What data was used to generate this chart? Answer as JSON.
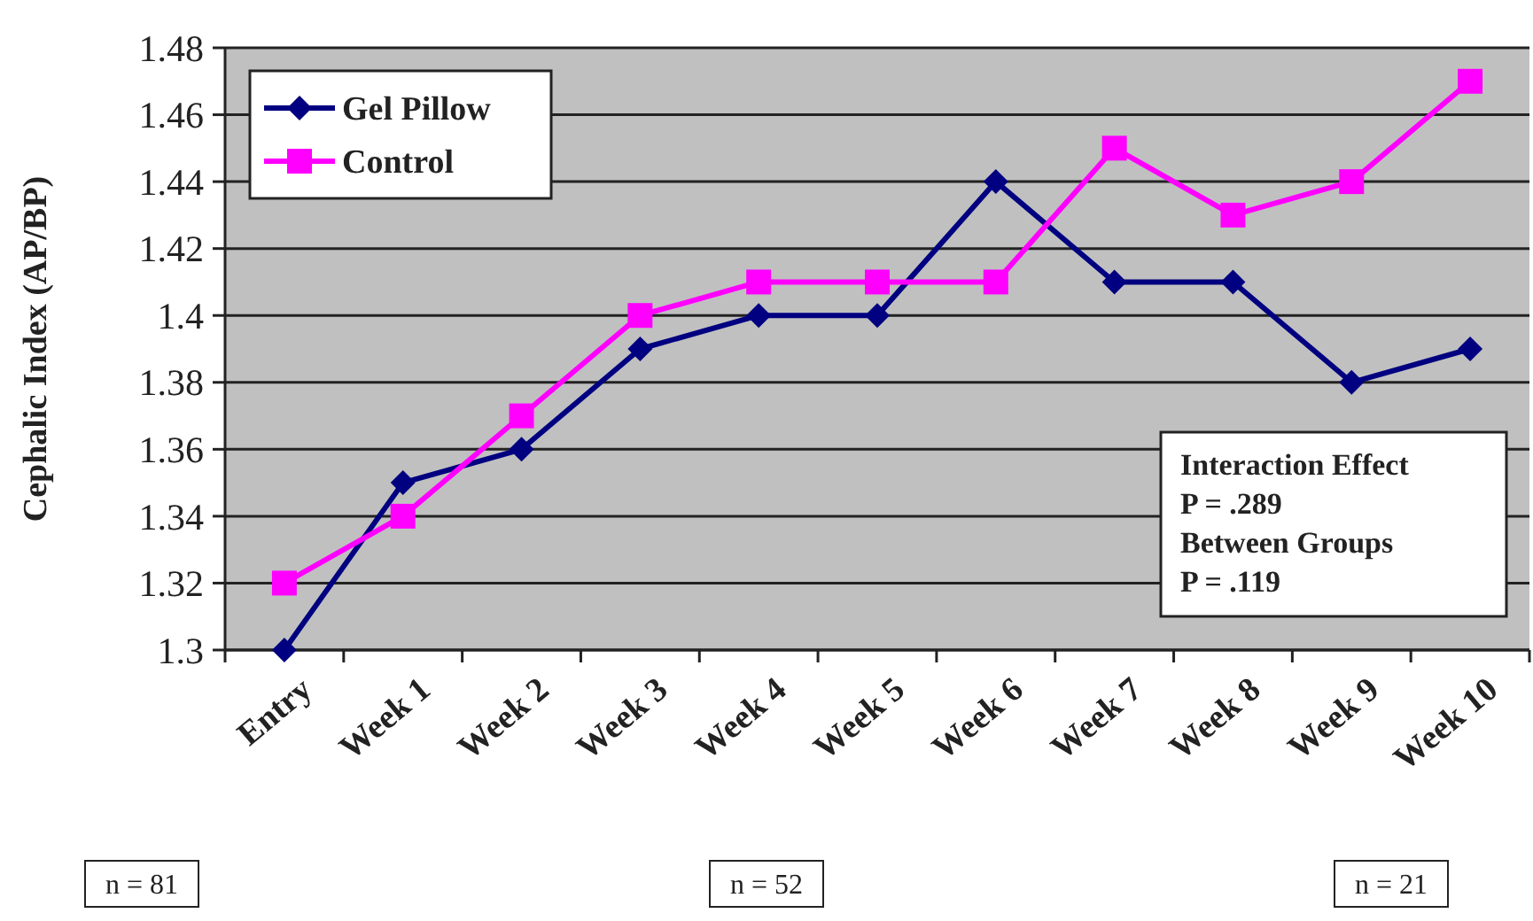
{
  "chart_data": {
    "type": "line",
    "ylabel": "Cephalic Index (AP/BP)",
    "categories": [
      "Entry",
      "Week 1",
      "Week 2",
      "Week 3",
      "Week 4",
      "Week 5",
      "Week 6",
      "Week 7",
      "Week 8",
      "Week 9",
      "Week 10"
    ],
    "series": [
      {
        "name": "Gel Pillow",
        "color": "#000080",
        "marker": "diamond",
        "values": [
          1.3,
          1.35,
          1.36,
          1.39,
          1.4,
          1.4,
          1.44,
          1.41,
          1.41,
          1.38,
          1.39
        ]
      },
      {
        "name": "Control",
        "color": "#ff00ff",
        "marker": "square",
        "values": [
          1.32,
          1.34,
          1.37,
          1.4,
          1.41,
          1.41,
          1.41,
          1.45,
          1.43,
          1.44,
          1.47
        ]
      }
    ],
    "ylim": [
      1.3,
      1.48
    ],
    "yticks": [
      1.3,
      1.32,
      1.34,
      1.36,
      1.38,
      1.4,
      1.42,
      1.44,
      1.46,
      1.48
    ],
    "grid": "y",
    "legend": "top left",
    "annotations": [
      "Interaction Effect\nP = .289\nBetween Groups\nP = .119",
      "n = 81",
      "n = 52",
      "n = 21"
    ]
  }
}
